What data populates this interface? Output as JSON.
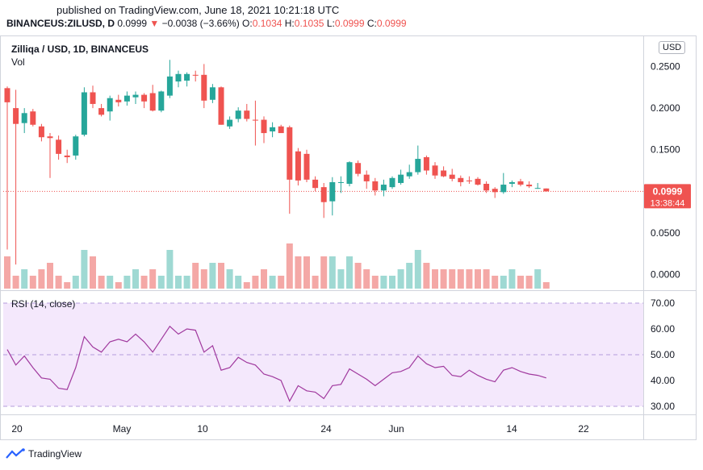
{
  "header": {
    "published": "published on TradingView.com, June 18, 2021 10:21:18 UTC",
    "symbol": "BINANCEUS:ZILUSD, D",
    "last": "0.0999",
    "change": "−0.0038 (−3.66%)",
    "ohlc": {
      "o_label": "O:",
      "o": "0.1034",
      "h_label": "H:",
      "h": "0.1035",
      "l_label": "L:",
      "l": "0.0999",
      "c_label": "C:",
      "c": "0.0999"
    }
  },
  "legend": {
    "main": "Zilliqa / USD, 1D, BINANCEUS",
    "vol": "Vol",
    "currency": "USD"
  },
  "price_badge": {
    "price": "0.0999",
    "countdown": "13:38:44"
  },
  "rsi": {
    "label": "RSI (14, close)"
  },
  "branding": {
    "name": "TradingView"
  },
  "colors": {
    "up": "#26a69a",
    "down": "#ef5350",
    "up_vol": "#9fd9d3",
    "down_vol": "#f4a8a6",
    "rsi_line": "#a0399e",
    "rsi_band": "#f4e8fc"
  },
  "chart_data": [
    {
      "type": "candlestick",
      "title": "Zilliqa / USD, 1D, BINANCEUS",
      "y_ticks": [
        "0.2500",
        "0.2000",
        "0.1500",
        "0.0500",
        "0.0000"
      ],
      "ylim": [
        -0.02,
        0.28
      ],
      "x_ticks": [
        "20",
        "May",
        "10",
        "24",
        "Jun",
        "14",
        "22"
      ],
      "candles": [
        {
          "o": 0.224,
          "h": 0.226,
          "l": 0.03,
          "c": 0.207
        },
        {
          "o": 0.2,
          "h": 0.222,
          "l": 0.012,
          "c": 0.181
        },
        {
          "o": 0.182,
          "h": 0.2,
          "l": 0.17,
          "c": 0.194
        },
        {
          "o": 0.196,
          "h": 0.199,
          "l": 0.178,
          "c": 0.18
        },
        {
          "o": 0.178,
          "h": 0.181,
          "l": 0.16,
          "c": 0.165
        },
        {
          "o": 0.166,
          "h": 0.17,
          "l": 0.116,
          "c": 0.164
        },
        {
          "o": 0.162,
          "h": 0.167,
          "l": 0.138,
          "c": 0.145
        },
        {
          "o": 0.143,
          "h": 0.15,
          "l": 0.134,
          "c": 0.141
        },
        {
          "o": 0.143,
          "h": 0.168,
          "l": 0.138,
          "c": 0.166
        },
        {
          "o": 0.168,
          "h": 0.225,
          "l": 0.166,
          "c": 0.219
        },
        {
          "o": 0.219,
          "h": 0.227,
          "l": 0.2,
          "c": 0.205
        },
        {
          "o": 0.2,
          "h": 0.205,
          "l": 0.19,
          "c": 0.192
        },
        {
          "o": 0.196,
          "h": 0.215,
          "l": 0.185,
          "c": 0.212
        },
        {
          "o": 0.21,
          "h": 0.216,
          "l": 0.202,
          "c": 0.207
        },
        {
          "o": 0.208,
          "h": 0.22,
          "l": 0.203,
          "c": 0.215
        },
        {
          "o": 0.213,
          "h": 0.22,
          "l": 0.205,
          "c": 0.216
        },
        {
          "o": 0.216,
          "h": 0.218,
          "l": 0.2,
          "c": 0.208
        },
        {
          "o": 0.218,
          "h": 0.228,
          "l": 0.196,
          "c": 0.197
        },
        {
          "o": 0.197,
          "h": 0.221,
          "l": 0.195,
          "c": 0.22
        },
        {
          "o": 0.215,
          "h": 0.258,
          "l": 0.212,
          "c": 0.238
        },
        {
          "o": 0.232,
          "h": 0.245,
          "l": 0.225,
          "c": 0.241
        },
        {
          "o": 0.233,
          "h": 0.243,
          "l": 0.226,
          "c": 0.241
        },
        {
          "o": 0.24,
          "h": 0.245,
          "l": 0.232,
          "c": 0.239
        },
        {
          "o": 0.24,
          "h": 0.253,
          "l": 0.2,
          "c": 0.209
        },
        {
          "o": 0.21,
          "h": 0.229,
          "l": 0.206,
          "c": 0.225
        },
        {
          "o": 0.225,
          "h": 0.226,
          "l": 0.18,
          "c": 0.18
        },
        {
          "o": 0.178,
          "h": 0.19,
          "l": 0.175,
          "c": 0.186
        },
        {
          "o": 0.187,
          "h": 0.201,
          "l": 0.183,
          "c": 0.197
        },
        {
          "o": 0.197,
          "h": 0.205,
          "l": 0.184,
          "c": 0.187
        },
        {
          "o": 0.186,
          "h": 0.209,
          "l": 0.155,
          "c": 0.185
        },
        {
          "o": 0.186,
          "h": 0.19,
          "l": 0.158,
          "c": 0.17
        },
        {
          "o": 0.172,
          "h": 0.183,
          "l": 0.165,
          "c": 0.177
        },
        {
          "o": 0.178,
          "h": 0.18,
          "l": 0.171,
          "c": 0.17
        },
        {
          "o": 0.177,
          "h": 0.179,
          "l": 0.073,
          "c": 0.114
        },
        {
          "o": 0.148,
          "h": 0.152,
          "l": 0.107,
          "c": 0.113
        },
        {
          "o": 0.145,
          "h": 0.15,
          "l": 0.111,
          "c": 0.114
        },
        {
          "o": 0.114,
          "h": 0.118,
          "l": 0.1,
          "c": 0.104
        },
        {
          "o": 0.105,
          "h": 0.11,
          "l": 0.068,
          "c": 0.087
        },
        {
          "o": 0.088,
          "h": 0.117,
          "l": 0.071,
          "c": 0.111
        },
        {
          "o": 0.11,
          "h": 0.118,
          "l": 0.098,
          "c": 0.111
        },
        {
          "o": 0.109,
          "h": 0.136,
          "l": 0.106,
          "c": 0.135
        },
        {
          "o": 0.134,
          "h": 0.137,
          "l": 0.118,
          "c": 0.121
        },
        {
          "o": 0.12,
          "h": 0.125,
          "l": 0.103,
          "c": 0.112
        },
        {
          "o": 0.112,
          "h": 0.116,
          "l": 0.095,
          "c": 0.101
        },
        {
          "o": 0.101,
          "h": 0.114,
          "l": 0.094,
          "c": 0.108
        },
        {
          "o": 0.105,
          "h": 0.118,
          "l": 0.103,
          "c": 0.116
        },
        {
          "o": 0.11,
          "h": 0.126,
          "l": 0.108,
          "c": 0.12
        },
        {
          "o": 0.118,
          "h": 0.132,
          "l": 0.115,
          "c": 0.123
        },
        {
          "o": 0.123,
          "h": 0.155,
          "l": 0.12,
          "c": 0.139
        },
        {
          "o": 0.141,
          "h": 0.143,
          "l": 0.12,
          "c": 0.125
        },
        {
          "o": 0.131,
          "h": 0.135,
          "l": 0.115,
          "c": 0.119
        },
        {
          "o": 0.125,
          "h": 0.13,
          "l": 0.117,
          "c": 0.118
        },
        {
          "o": 0.12,
          "h": 0.127,
          "l": 0.112,
          "c": 0.115
        },
        {
          "o": 0.116,
          "h": 0.119,
          "l": 0.106,
          "c": 0.111
        },
        {
          "o": 0.113,
          "h": 0.118,
          "l": 0.109,
          "c": 0.112
        },
        {
          "o": 0.115,
          "h": 0.117,
          "l": 0.107,
          "c": 0.108
        },
        {
          "o": 0.109,
          "h": 0.112,
          "l": 0.098,
          "c": 0.101
        },
        {
          "o": 0.103,
          "h": 0.105,
          "l": 0.092,
          "c": 0.099
        },
        {
          "o": 0.099,
          "h": 0.122,
          "l": 0.097,
          "c": 0.108
        },
        {
          "o": 0.109,
          "h": 0.113,
          "l": 0.105,
          "c": 0.111
        },
        {
          "o": 0.112,
          "h": 0.115,
          "l": 0.106,
          "c": 0.108
        },
        {
          "o": 0.108,
          "h": 0.112,
          "l": 0.104,
          "c": 0.106
        },
        {
          "o": 0.104,
          "h": 0.11,
          "l": 0.103,
          "c": 0.104
        },
        {
          "o": 0.1034,
          "h": 0.1035,
          "l": 0.0999,
          "c": 0.0999
        }
      ],
      "volume_relative": [
        0.5,
        0.2,
        0.3,
        0.2,
        0.3,
        0.4,
        0.2,
        0.1,
        0.2,
        0.6,
        0.5,
        0.2,
        0.2,
        0.1,
        0.2,
        0.3,
        0.2,
        0.3,
        0.2,
        0.6,
        0.2,
        0.2,
        0.4,
        0.3,
        0.4,
        0.4,
        0.3,
        0.2,
        0.1,
        0.2,
        0.3,
        0.2,
        0.2,
        0.7,
        0.5,
        0.5,
        0.2,
        0.5,
        0.5,
        0.3,
        0.5,
        0.4,
        0.3,
        0.2,
        0.2,
        0.2,
        0.3,
        0.4,
        0.6,
        0.4,
        0.3,
        0.3,
        0.3,
        0.3,
        0.3,
        0.3,
        0.3,
        0.2,
        0.2,
        0.3,
        0.2,
        0.2,
        0.3,
        0.1
      ]
    },
    {
      "type": "line",
      "title": "RSI (14, close)",
      "y_ticks": [
        "70.00",
        "60.00",
        "50.00",
        "40.00",
        "30.00"
      ],
      "ylim": [
        28,
        72
      ],
      "band": [
        30,
        70
      ],
      "midline": 50,
      "series": [
        {
          "values": [
            52,
            46,
            49.5,
            45,
            41,
            40.5,
            37,
            36.5,
            45,
            57,
            53,
            51,
            55,
            56,
            55,
            58,
            55,
            51,
            56,
            61,
            58,
            60,
            59.5,
            51,
            53.5,
            44,
            45,
            49,
            47,
            46,
            42.5,
            41.5,
            40,
            32,
            38,
            36,
            35.5,
            33,
            38,
            38.5,
            44.5,
            42.5,
            40.5,
            38,
            40.5,
            43,
            43.5,
            45,
            49.5,
            46.5,
            45,
            45.5,
            42,
            41.5,
            44,
            42,
            40.5,
            39.5,
            44,
            45,
            43.5,
            42.5,
            42,
            41
          ]
        }
      ]
    }
  ]
}
